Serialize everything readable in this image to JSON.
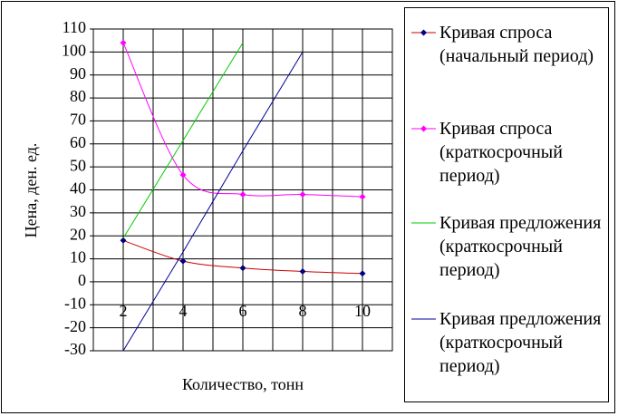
{
  "chart_data": {
    "type": "line",
    "x_label": "Количество, тонн",
    "y_label": "Цена, ден. ед.",
    "xlim": [
      1,
      11
    ],
    "xticks": [
      2,
      4,
      6,
      8,
      10
    ],
    "x_minor_ticks": [
      1,
      3,
      5,
      7,
      9,
      11
    ],
    "ylim": [
      -30,
      110
    ],
    "yticks": [
      -30,
      -20,
      -10,
      0,
      10,
      20,
      30,
      40,
      50,
      60,
      70,
      80,
      90,
      100,
      110
    ],
    "grid": true,
    "series": [
      {
        "name": "Кривая спроса (начальный период)",
        "color": "#cc0000",
        "marker_color": "#000080",
        "smooth": true,
        "x": [
          2,
          4,
          6,
          8,
          10
        ],
        "values": [
          18,
          9,
          6,
          4.5,
          3.6
        ]
      },
      {
        "name": "Кривая спроса (краткосрочный период)",
        "color": "#ff00ff",
        "marker_color": "#ff00ff",
        "smooth": true,
        "x": [
          2,
          4,
          6,
          8,
          10
        ],
        "values": [
          104,
          46.5,
          38,
          38,
          37
        ]
      },
      {
        "name": "Кривая предложения (краткосрочный период)",
        "color": "#00cc00",
        "smooth": false,
        "x": [
          2,
          4,
          6
        ],
        "values": [
          19,
          61.5,
          104
        ]
      },
      {
        "name": "Кривая предложения (краткосрочный период)",
        "color": "#000099",
        "smooth": false,
        "x": [
          2,
          4,
          6,
          8
        ],
        "values": [
          -30,
          13,
          57,
          100
        ]
      }
    ]
  }
}
